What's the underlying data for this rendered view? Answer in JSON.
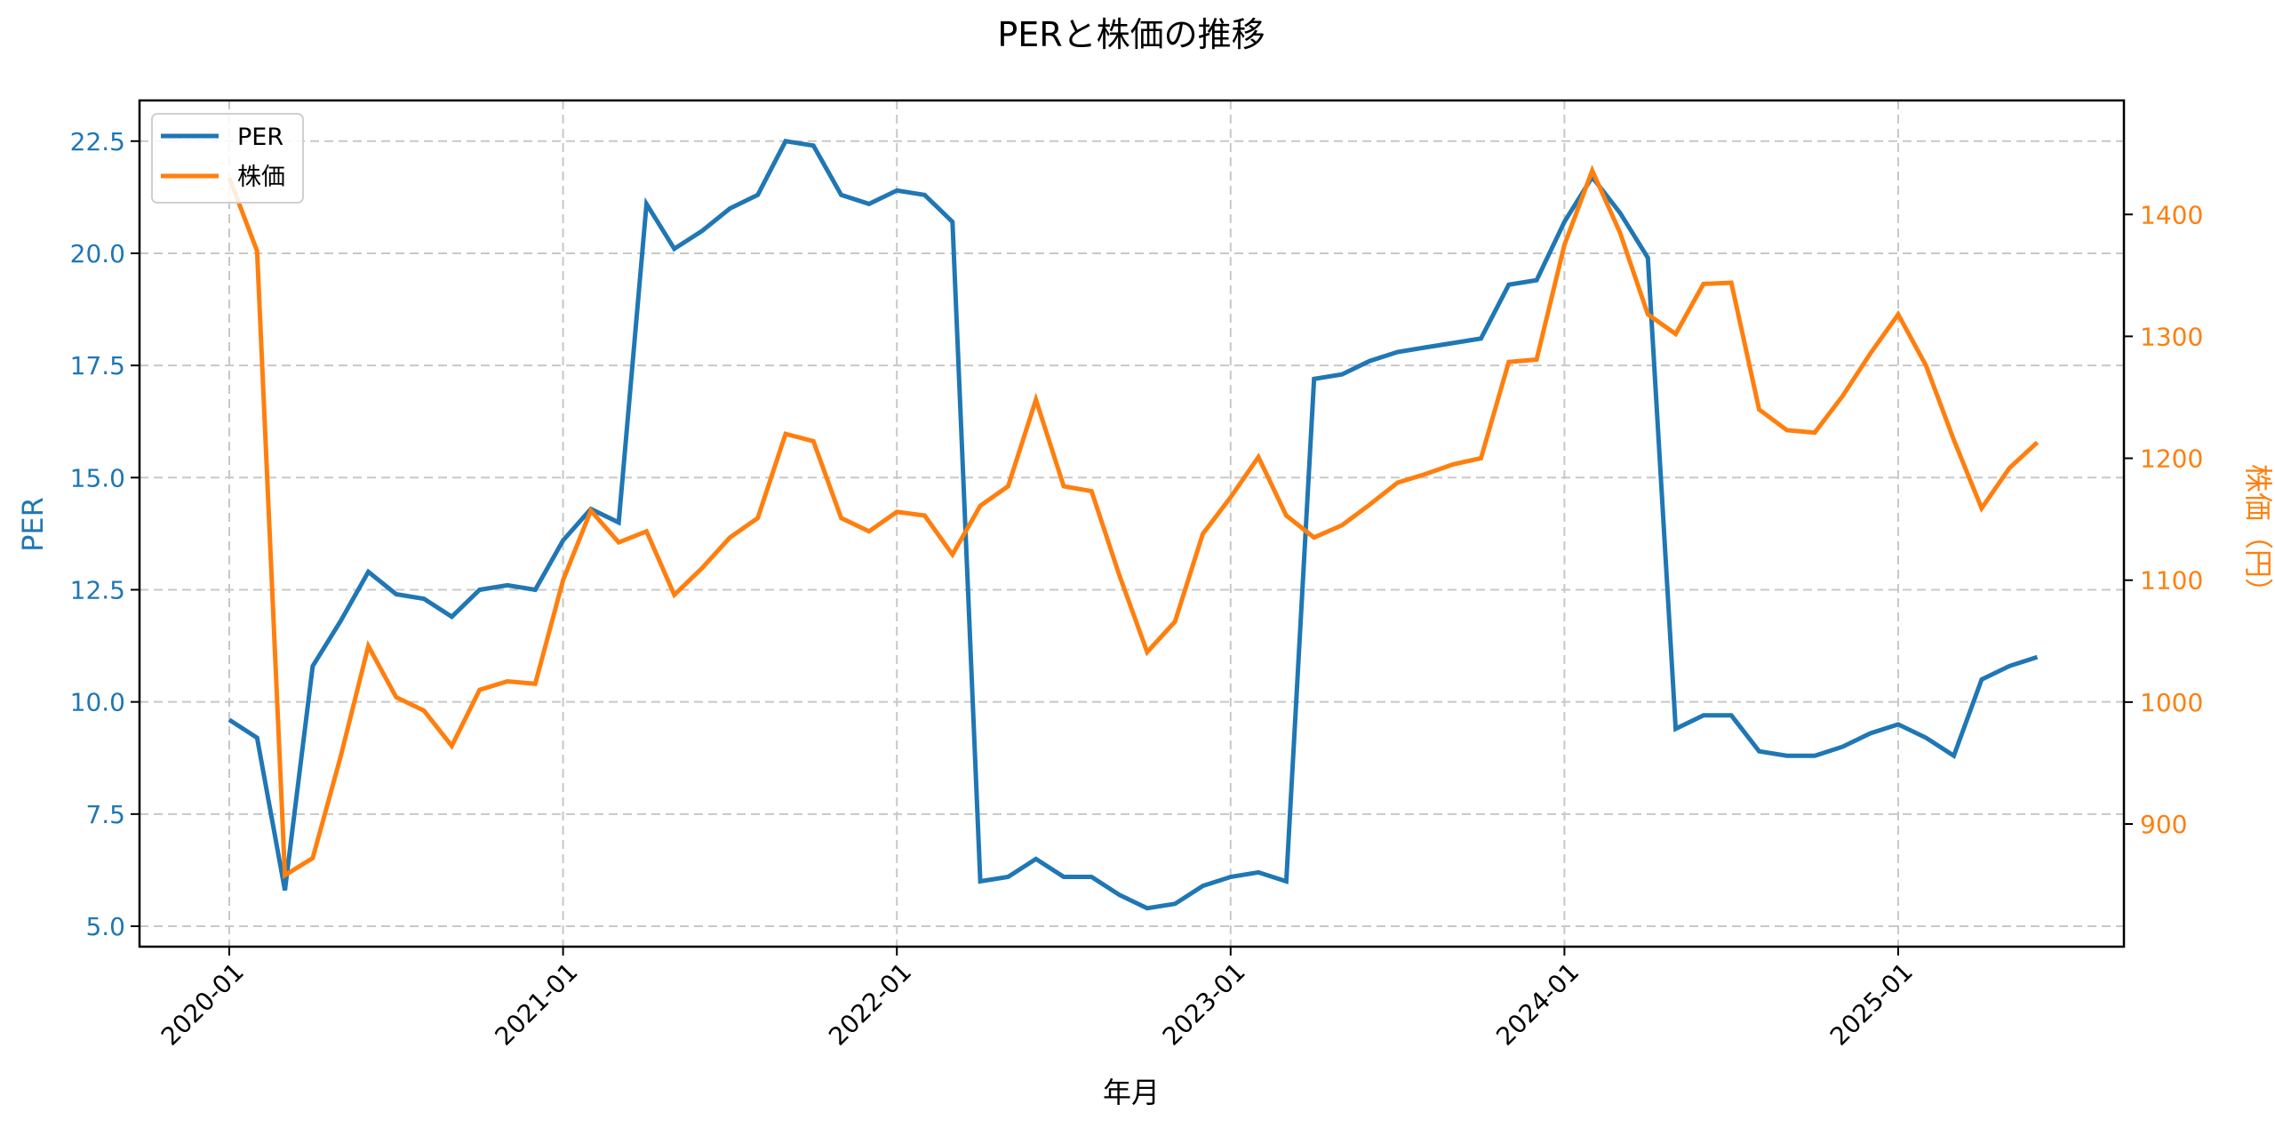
{
  "chart_data": {
    "type": "line",
    "title": "PERと株価の推移",
    "xlabel": "年月",
    "ylabel": "PER",
    "ylabel_right": "株価（円）",
    "ylim": [
      4.6,
      23.5
    ],
    "ylim_right": [
      806,
      1494
    ],
    "grid": true,
    "legend_position": "upper left",
    "x_tick_labels": [
      "2020-01",
      "2021-01",
      "2022-01",
      "2023-01",
      "2024-01",
      "2025-01"
    ],
    "y_ticks_left": [
      "5.0",
      "7.5",
      "10.0",
      "12.5",
      "15.0",
      "17.5",
      "20.0",
      "22.5"
    ],
    "y_ticks_right": [
      "900",
      "1000",
      "1100",
      "1200",
      "1300",
      "1400"
    ],
    "x": [
      "2020-01",
      "2020-02",
      "2020-03",
      "2020-04",
      "2020-05",
      "2020-06",
      "2020-07",
      "2020-08",
      "2020-09",
      "2020-10",
      "2020-11",
      "2020-12",
      "2021-01",
      "2021-02",
      "2021-03",
      "2021-04",
      "2021-05",
      "2021-06",
      "2021-07",
      "2021-08",
      "2021-09",
      "2021-10",
      "2021-11",
      "2021-12",
      "2022-01",
      "2022-02",
      "2022-03",
      "2022-04",
      "2022-05",
      "2022-06",
      "2022-07",
      "2022-08",
      "2022-09",
      "2022-10",
      "2022-11",
      "2022-12",
      "2023-01",
      "2023-02",
      "2023-03",
      "2023-04",
      "2023-05",
      "2023-06",
      "2023-07",
      "2023-08",
      "2023-09",
      "2023-10",
      "2023-11",
      "2023-12",
      "2024-01",
      "2024-02",
      "2024-03",
      "2024-04",
      "2024-05",
      "2024-06",
      "2024-07",
      "2024-08",
      "2024-09",
      "2024-10",
      "2024-11",
      "2024-12",
      "2025-01",
      "2025-02",
      "2025-03",
      "2025-04",
      "2025-05",
      "2025-06"
    ],
    "series": [
      {
        "name": "PER",
        "axis": "left",
        "color": "#1f77b4",
        "values": [
          9.6,
          9.2,
          5.8,
          10.8,
          11.8,
          12.9,
          12.4,
          12.3,
          11.9,
          12.5,
          12.6,
          12.5,
          13.6,
          14.3,
          14.0,
          21.1,
          20.1,
          20.5,
          21.0,
          21.3,
          22.5,
          22.4,
          21.3,
          21.1,
          21.4,
          21.3,
          20.7,
          6.0,
          6.1,
          6.5,
          6.1,
          6.1,
          5.7,
          5.4,
          5.5,
          5.9,
          6.1,
          6.2,
          6.0,
          17.2,
          17.3,
          17.6,
          17.8,
          17.9,
          18.0,
          18.1,
          19.3,
          19.4,
          20.7,
          21.7,
          20.9,
          19.9,
          9.4,
          9.7,
          9.7,
          8.9,
          8.8,
          8.8,
          9.0,
          9.3,
          9.5,
          9.2,
          8.8,
          10.5,
          10.8,
          11.0
        ]
      },
      {
        "name": "株価",
        "axis": "right",
        "color": "#ff7f0e",
        "values": [
          1430,
          1370,
          858,
          872,
          955,
          1046,
          1004,
          993,
          964,
          1010,
          1017,
          1015,
          1100,
          1157,
          1131,
          1140,
          1088,
          1110,
          1135,
          1151,
          1220,
          1214,
          1151,
          1140,
          1156,
          1153,
          1121,
          1161,
          1177,
          1248,
          1177,
          1173,
          1104,
          1041,
          1066,
          1138,
          1168,
          1201,
          1153,
          1135,
          1145,
          1162,
          1180,
          1187,
          1195,
          1200,
          1279,
          1281,
          1375,
          1436,
          1385,
          1318,
          1302,
          1343,
          1344,
          1240,
          1223,
          1221,
          1251,
          1286,
          1318,
          1276,
          1215,
          1159,
          1192,
          1213
        ]
      }
    ]
  },
  "legend": {
    "items": [
      {
        "label": "PER",
        "color": "#1f77b4"
      },
      {
        "label": "株価",
        "color": "#ff7f0e"
      }
    ]
  },
  "colors": {
    "per": "#1f77b4",
    "price": "#ff7f0e",
    "grid": "#c8c8c8",
    "axis": "#000000"
  }
}
